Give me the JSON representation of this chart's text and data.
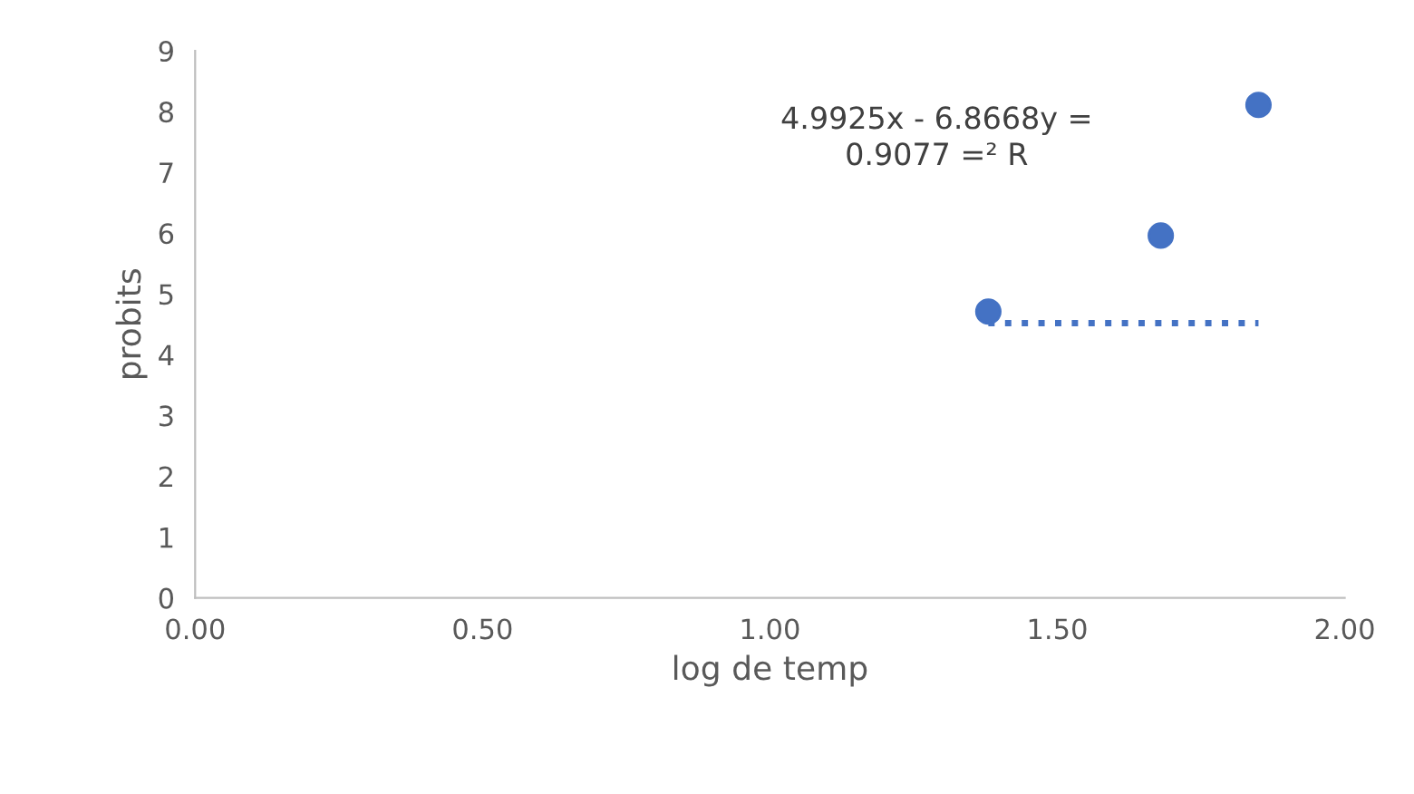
{
  "chart_data": {
    "type": "scatter",
    "xlabel": "log de temp",
    "ylabel": "probits",
    "xlim": [
      0,
      2
    ],
    "xticks": [
      {
        "value": 0,
        "label": "0.00"
      },
      {
        "value": 0.5,
        "label": "0.50"
      },
      {
        "value": 1,
        "label": "1.00"
      },
      {
        "value": 1.5,
        "label": "1.50"
      },
      {
        "value": 2,
        "label": "2.00"
      }
    ],
    "ylim": [
      0,
      9
    ],
    "yticks": [
      0,
      1,
      2,
      3,
      4,
      5,
      6,
      7,
      8,
      9
    ],
    "grid": false,
    "legend": false,
    "series": [
      {
        "color": "#4472c4",
        "marker": "circle",
        "x": [
          1.38,
          1.68,
          1.85
        ],
        "values": [
          4.71,
          5.96,
          8.11
        ]
      },
      {
        "type": "line",
        "color": "#4472c4",
        "line_style": "dotted",
        "marker": "none",
        "x": [
          1.38,
          1.85
        ],
        "values": [
          4.52,
          4.52
        ]
      }
    ],
    "annotations": [
      "4.9925x - 6.8668y =\n0.9077 =² R"
    ]
  }
}
